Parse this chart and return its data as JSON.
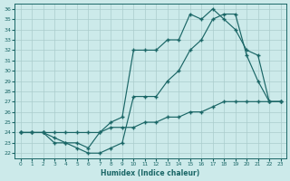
{
  "xlabel": "Humidex (Indice chaleur)",
  "bg_color": "#cceaea",
  "grid_color": "#aacccc",
  "line_color": "#1a6666",
  "xlim": [
    -0.5,
    23.5
  ],
  "ylim": [
    21.5,
    36.5
  ],
  "xticks": [
    0,
    1,
    2,
    3,
    4,
    5,
    6,
    7,
    8,
    9,
    10,
    11,
    12,
    13,
    14,
    15,
    16,
    17,
    18,
    19,
    20,
    21,
    22,
    23
  ],
  "yticks": [
    22,
    23,
    24,
    25,
    26,
    27,
    28,
    29,
    30,
    31,
    32,
    33,
    34,
    35,
    36
  ],
  "line_flat_x": [
    0,
    1,
    2,
    3,
    4,
    5,
    6,
    7,
    8,
    9,
    10,
    11,
    12,
    13,
    14,
    15,
    16,
    17,
    18,
    19,
    20,
    21,
    22,
    23
  ],
  "line_flat_y": [
    24,
    24,
    24,
    24,
    24,
    24,
    24,
    24,
    24.5,
    24.5,
    24.5,
    25,
    25,
    25.5,
    25.5,
    26,
    26,
    26.5,
    27,
    27,
    27,
    27,
    27,
    27
  ],
  "line_mid_x": [
    0,
    1,
    2,
    3,
    4,
    5,
    6,
    7,
    8,
    9,
    10,
    11,
    12,
    13,
    14,
    15,
    16,
    17,
    18,
    19,
    20,
    21,
    22,
    23
  ],
  "line_mid_y": [
    24,
    24,
    24,
    23.5,
    23,
    23,
    22.5,
    24,
    25,
    25.5,
    32,
    32,
    32,
    33,
    33,
    35.5,
    35,
    36,
    35,
    34,
    32,
    31.5,
    27,
    27
  ],
  "line_jagged_x": [
    0,
    1,
    2,
    3,
    4,
    5,
    6,
    7,
    8,
    9,
    10,
    11,
    12,
    13,
    14,
    15,
    16,
    17,
    18,
    19,
    20,
    21,
    22,
    23
  ],
  "line_jagged_y": [
    24,
    24,
    24,
    23,
    23,
    22.5,
    22,
    22,
    22.5,
    23,
    27.5,
    27.5,
    27.5,
    29,
    30,
    32,
    33,
    35,
    35.5,
    35.5,
    31.5,
    29,
    27,
    27
  ]
}
